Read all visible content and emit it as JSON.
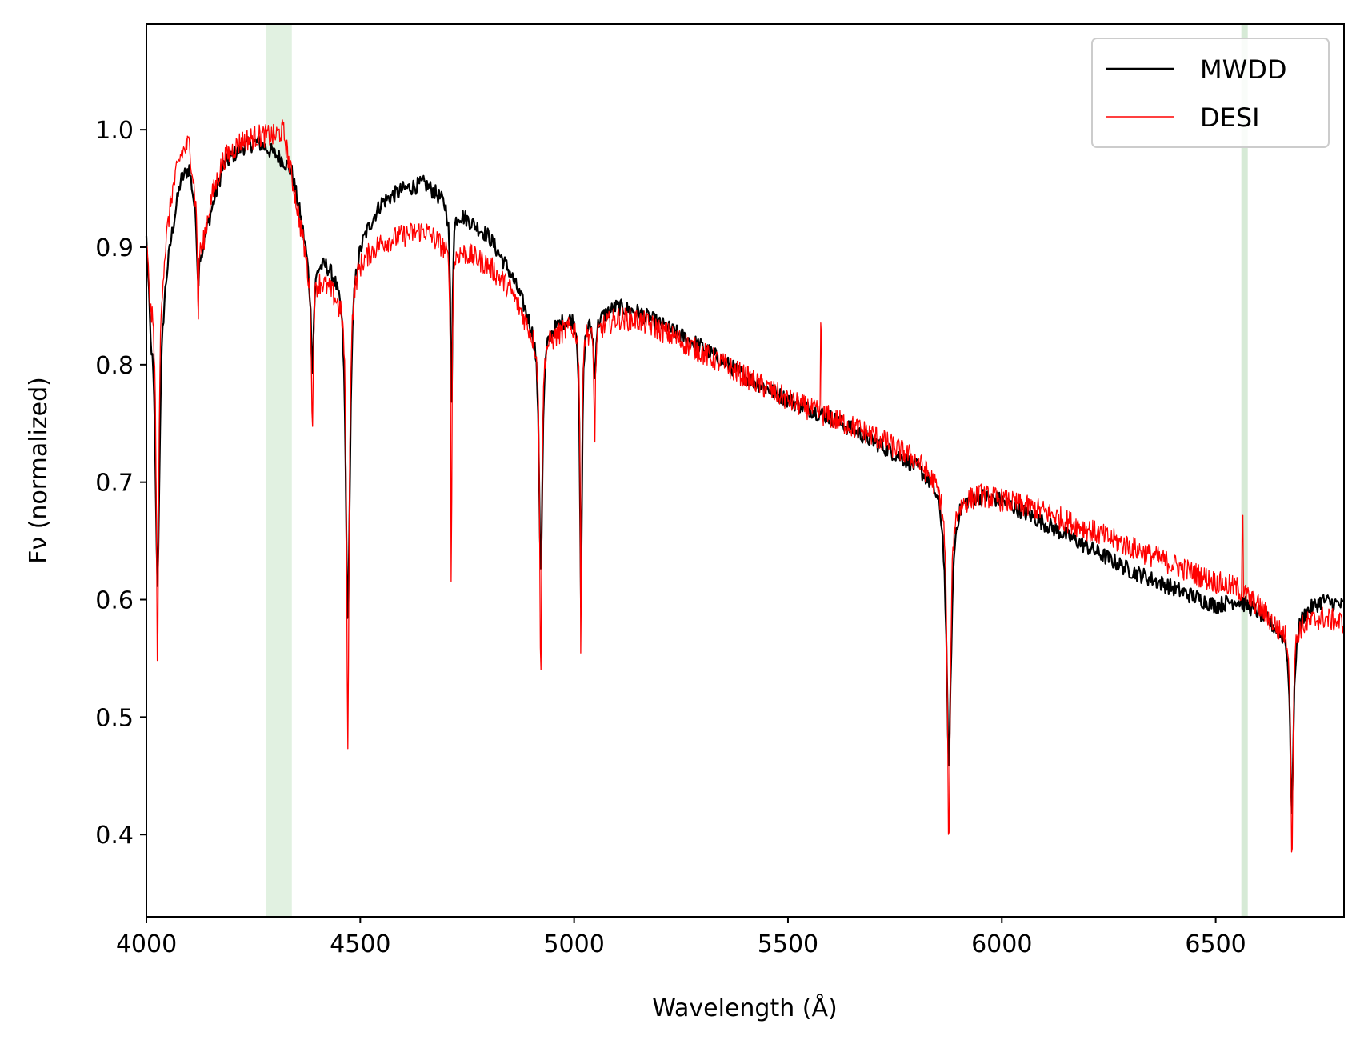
{
  "chart_data": {
    "type": "line",
    "title": "",
    "xlabel": "Wavelength (Å)",
    "ylabel": "Fν (normalized)",
    "xlim": [
      4000,
      6800
    ],
    "ylim": [
      0.33,
      1.09
    ],
    "xticks": [
      4000,
      4500,
      5000,
      5500,
      6000,
      6500
    ],
    "xtick_labels": [
      "4000",
      "4500",
      "5000",
      "5500",
      "6000",
      "6500"
    ],
    "yticks": [
      0.4,
      0.5,
      0.6,
      0.7,
      0.8,
      0.9,
      1.0
    ],
    "ytick_labels": [
      "0.4",
      "0.5",
      "0.6",
      "0.7",
      "0.8",
      "0.9",
      "1.0"
    ],
    "grid": false,
    "legend_position": "top-right",
    "shaded_regions": [
      {
        "x_start": 4280,
        "x_end": 4340,
        "color": "#dcefdc"
      },
      {
        "x_start": 6560,
        "x_end": 6575,
        "color": "#cfe6cf"
      }
    ],
    "continuum": {
      "wavelength": [
        4000,
        4010,
        4040,
        4060,
        4080,
        4100,
        4130,
        4150,
        4180,
        4220,
        4260,
        4300,
        4320,
        4340,
        4360,
        4380,
        4420,
        4450,
        4500,
        4550,
        4600,
        4650,
        4700,
        4750,
        4800,
        4850,
        4900,
        4950,
        5000,
        5050,
        5100,
        5150,
        5200,
        5300,
        5400,
        5500,
        5600,
        5700,
        5800,
        5850,
        5900,
        5950,
        6000,
        6100,
        6200,
        6300,
        6400,
        6500,
        6550,
        6600,
        6650,
        6700,
        6750,
        6800
      ],
      "mwdd": [
        0.92,
        0.85,
        0.88,
        0.92,
        0.96,
        0.97,
        0.9,
        0.93,
        0.97,
        0.985,
        0.99,
        0.98,
        0.975,
        0.965,
        0.93,
        0.89,
        0.89,
        0.88,
        0.91,
        0.94,
        0.95,
        0.955,
        0.94,
        0.925,
        0.91,
        0.88,
        0.84,
        0.835,
        0.845,
        0.84,
        0.85,
        0.845,
        0.835,
        0.815,
        0.79,
        0.77,
        0.755,
        0.735,
        0.715,
        0.7,
        0.69,
        0.69,
        0.685,
        0.665,
        0.645,
        0.625,
        0.61,
        0.595,
        0.6,
        0.59,
        0.575,
        0.59,
        0.6,
        0.595
      ],
      "desi": [
        0.91,
        0.86,
        0.9,
        0.95,
        0.98,
        0.99,
        0.9,
        0.94,
        0.975,
        0.99,
        0.995,
        0.995,
        1.0,
        0.96,
        0.92,
        0.88,
        0.87,
        0.86,
        0.89,
        0.905,
        0.91,
        0.915,
        0.9,
        0.895,
        0.885,
        0.865,
        0.83,
        0.825,
        0.835,
        0.83,
        0.84,
        0.838,
        0.83,
        0.81,
        0.79,
        0.77,
        0.755,
        0.74,
        0.72,
        0.7,
        0.685,
        0.69,
        0.685,
        0.675,
        0.66,
        0.645,
        0.63,
        0.615,
        0.61,
        0.595,
        0.575,
        0.58,
        0.585,
        0.58
      ]
    },
    "absorption_lines": [
      {
        "center": 4026,
        "mwdd_depth": 0.25,
        "desi_depth": 0.33,
        "width": 6
      },
      {
        "center": 4121,
        "mwdd_depth": 0.05,
        "desi_depth": 0.09,
        "width": 3
      },
      {
        "center": 4388,
        "mwdd_depth": 0.09,
        "desi_depth": 0.14,
        "width": 4
      },
      {
        "center": 4471,
        "mwdd_depth": 0.31,
        "desi_depth": 0.39,
        "width": 6
      },
      {
        "center": 4713,
        "mwdd_depth": 0.19,
        "desi_depth": 0.31,
        "width": 2.5
      },
      {
        "center": 4922,
        "mwdd_depth": 0.21,
        "desi_depth": 0.29,
        "width": 5
      },
      {
        "center": 5016,
        "mwdd_depth": 0.25,
        "desi_depth": 0.3,
        "width": 3
      },
      {
        "center": 5048,
        "mwdd_depth": 0.05,
        "desi_depth": 0.1,
        "width": 3
      },
      {
        "center": 5876,
        "mwdd_depth": 0.23,
        "desi_depth": 0.3,
        "width": 7
      },
      {
        "center": 6678,
        "mwdd_depth": 0.16,
        "desi_depth": 0.2,
        "width": 5
      }
    ],
    "emission_spikes": [
      {
        "center": 5577,
        "height": 0.07
      },
      {
        "center": 6563,
        "height": 0.07
      }
    ],
    "series": [
      {
        "name": "MWDD",
        "color": "#000000"
      },
      {
        "name": "DESI",
        "color": "#ff0000"
      }
    ]
  }
}
